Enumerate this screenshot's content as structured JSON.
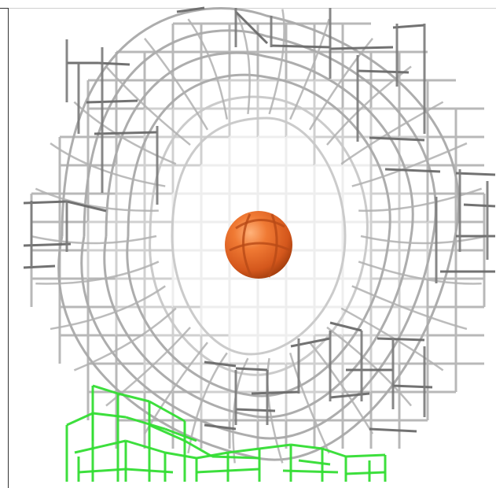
{
  "scene": {
    "description_free": true,
    "colors": {
      "background": "#ffffff",
      "mesh_light": "#d6d6d6",
      "mesh_mid": "#a8a8a8",
      "mesh_dark": "#555555",
      "ligand_mesh": "#33dd33",
      "sphere": "#e8692a",
      "sphere_shadow": "#b84a16"
    },
    "objects": [
      "wire-mesh-grey",
      "wire-mesh-green",
      "orange-sphere"
    ]
  }
}
